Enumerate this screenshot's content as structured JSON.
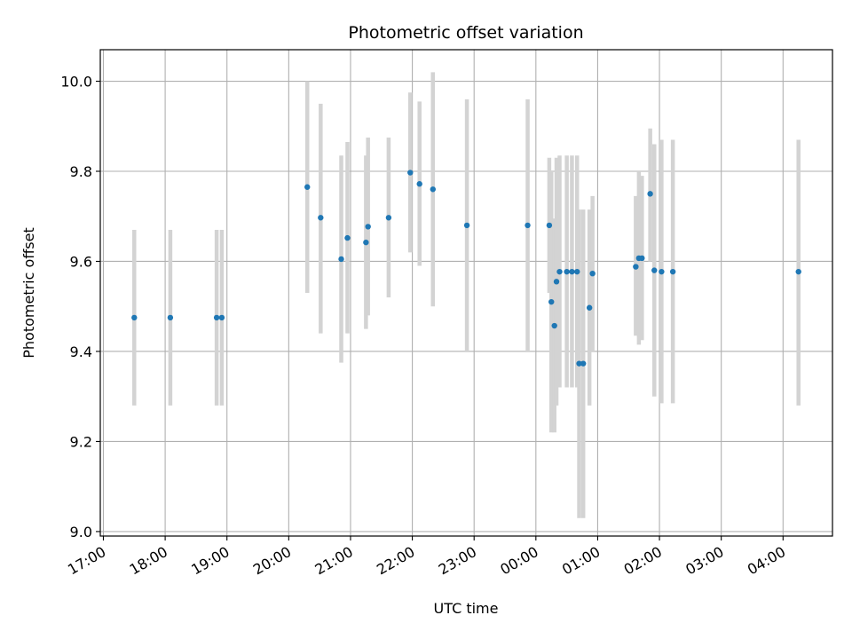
{
  "chart_data": {
    "type": "scatter",
    "title": "Photometric offset variation",
    "xlabel": "UTC time",
    "ylabel": "Photometric offset",
    "x_axis": {
      "kind": "time",
      "range": [
        "16:57",
        "04:48 +1d"
      ],
      "ticks": [
        "17:00",
        "18:00",
        "19:00",
        "20:00",
        "21:00",
        "22:00",
        "23:00",
        "00:00",
        "01:00",
        "02:00",
        "03:00",
        "04:00"
      ]
    },
    "ylim": [
      8.99,
      10.07
    ],
    "yticks": [
      "9.0",
      "9.2",
      "9.4",
      "9.6",
      "9.8",
      "10.0"
    ],
    "grid": true,
    "colors": {
      "point": "#1f77b4",
      "errorbar": "#d3d3d3",
      "grid": "#b0b0b0"
    },
    "series": [
      {
        "points": [
          {
            "t": "17:30",
            "y": 9.475,
            "yerr": [
              9.28,
              9.67
            ]
          },
          {
            "t": "18:05",
            "y": 9.475,
            "yerr": [
              9.28,
              9.67
            ]
          },
          {
            "t": "18:50",
            "y": 9.475,
            "yerr": [
              9.28,
              9.67
            ]
          },
          {
            "t": "18:55",
            "y": 9.475,
            "yerr": [
              9.28,
              9.67
            ]
          },
          {
            "t": "20:18",
            "y": 9.765,
            "yerr": [
              9.53,
              10.0
            ]
          },
          {
            "t": "20:31",
            "y": 9.697,
            "yerr": [
              9.44,
              9.95
            ]
          },
          {
            "t": "20:51",
            "y": 9.605,
            "yerr": [
              9.375,
              9.835
            ]
          },
          {
            "t": "20:57",
            "y": 9.652,
            "yerr": [
              9.44,
              9.865
            ]
          },
          {
            "t": "21:15",
            "y": 9.642,
            "yerr": [
              9.45,
              9.835
            ]
          },
          {
            "t": "21:17",
            "y": 9.677,
            "yerr": [
              9.48,
              9.875
            ]
          },
          {
            "t": "21:37",
            "y": 9.697,
            "yerr": [
              9.52,
              9.875
            ]
          },
          {
            "t": "21:58",
            "y": 9.797,
            "yerr": [
              9.62,
              9.975
            ]
          },
          {
            "t": "22:07",
            "y": 9.772,
            "yerr": [
              9.59,
              9.955
            ]
          },
          {
            "t": "22:20",
            "y": 9.76,
            "yerr": [
              9.5,
              10.02
            ]
          },
          {
            "t": "22:53",
            "y": 9.68,
            "yerr": [
              9.4,
              9.96
            ]
          },
          {
            "t": "23:52",
            "y": 9.68,
            "yerr": [
              9.4,
              9.96
            ]
          },
          {
            "t": "00:13",
            "y": 9.68,
            "yerr": [
              9.53,
              9.83
            ]
          },
          {
            "t": "00:15",
            "y": 9.51,
            "yerr": [
              9.22,
              9.8
            ]
          },
          {
            "t": "00:18",
            "y": 9.457,
            "yerr": [
              9.22,
              9.695
            ]
          },
          {
            "t": "00:20",
            "y": 9.555,
            "yerr": [
              9.28,
              9.83
            ]
          },
          {
            "t": "00:23",
            "y": 9.577,
            "yerr": [
              9.32,
              9.835
            ]
          },
          {
            "t": "00:30",
            "y": 9.577,
            "yerr": [
              9.32,
              9.835
            ]
          },
          {
            "t": "00:35",
            "y": 9.577,
            "yerr": [
              9.32,
              9.835
            ]
          },
          {
            "t": "00:40",
            "y": 9.577,
            "yerr": [
              9.32,
              9.835
            ]
          },
          {
            "t": "00:42",
            "y": 9.373,
            "yerr": [
              9.03,
              9.715
            ]
          },
          {
            "t": "00:46",
            "y": 9.373,
            "yerr": [
              9.03,
              9.715
            ]
          },
          {
            "t": "00:52",
            "y": 9.497,
            "yerr": [
              9.28,
              9.715
            ]
          },
          {
            "t": "00:55",
            "y": 9.573,
            "yerr": [
              9.4,
              9.745
            ]
          },
          {
            "t": "01:37",
            "y": 9.588,
            "yerr": [
              9.435,
              9.745
            ]
          },
          {
            "t": "01:40",
            "y": 9.607,
            "yerr": [
              9.415,
              9.8
            ]
          },
          {
            "t": "01:43",
            "y": 9.607,
            "yerr": [
              9.425,
              9.79
            ]
          },
          {
            "t": "01:51",
            "y": 9.75,
            "yerr": [
              9.6,
              9.895
            ]
          },
          {
            "t": "01:55",
            "y": 9.58,
            "yerr": [
              9.3,
              9.86
            ]
          },
          {
            "t": "02:02",
            "y": 9.577,
            "yerr": [
              9.285,
              9.87
            ]
          },
          {
            "t": "02:13",
            "y": 9.577,
            "yerr": [
              9.285,
              9.87
            ]
          },
          {
            "t": "04:15",
            "y": 9.577,
            "yerr": [
              9.28,
              9.87
            ]
          }
        ]
      }
    ]
  }
}
